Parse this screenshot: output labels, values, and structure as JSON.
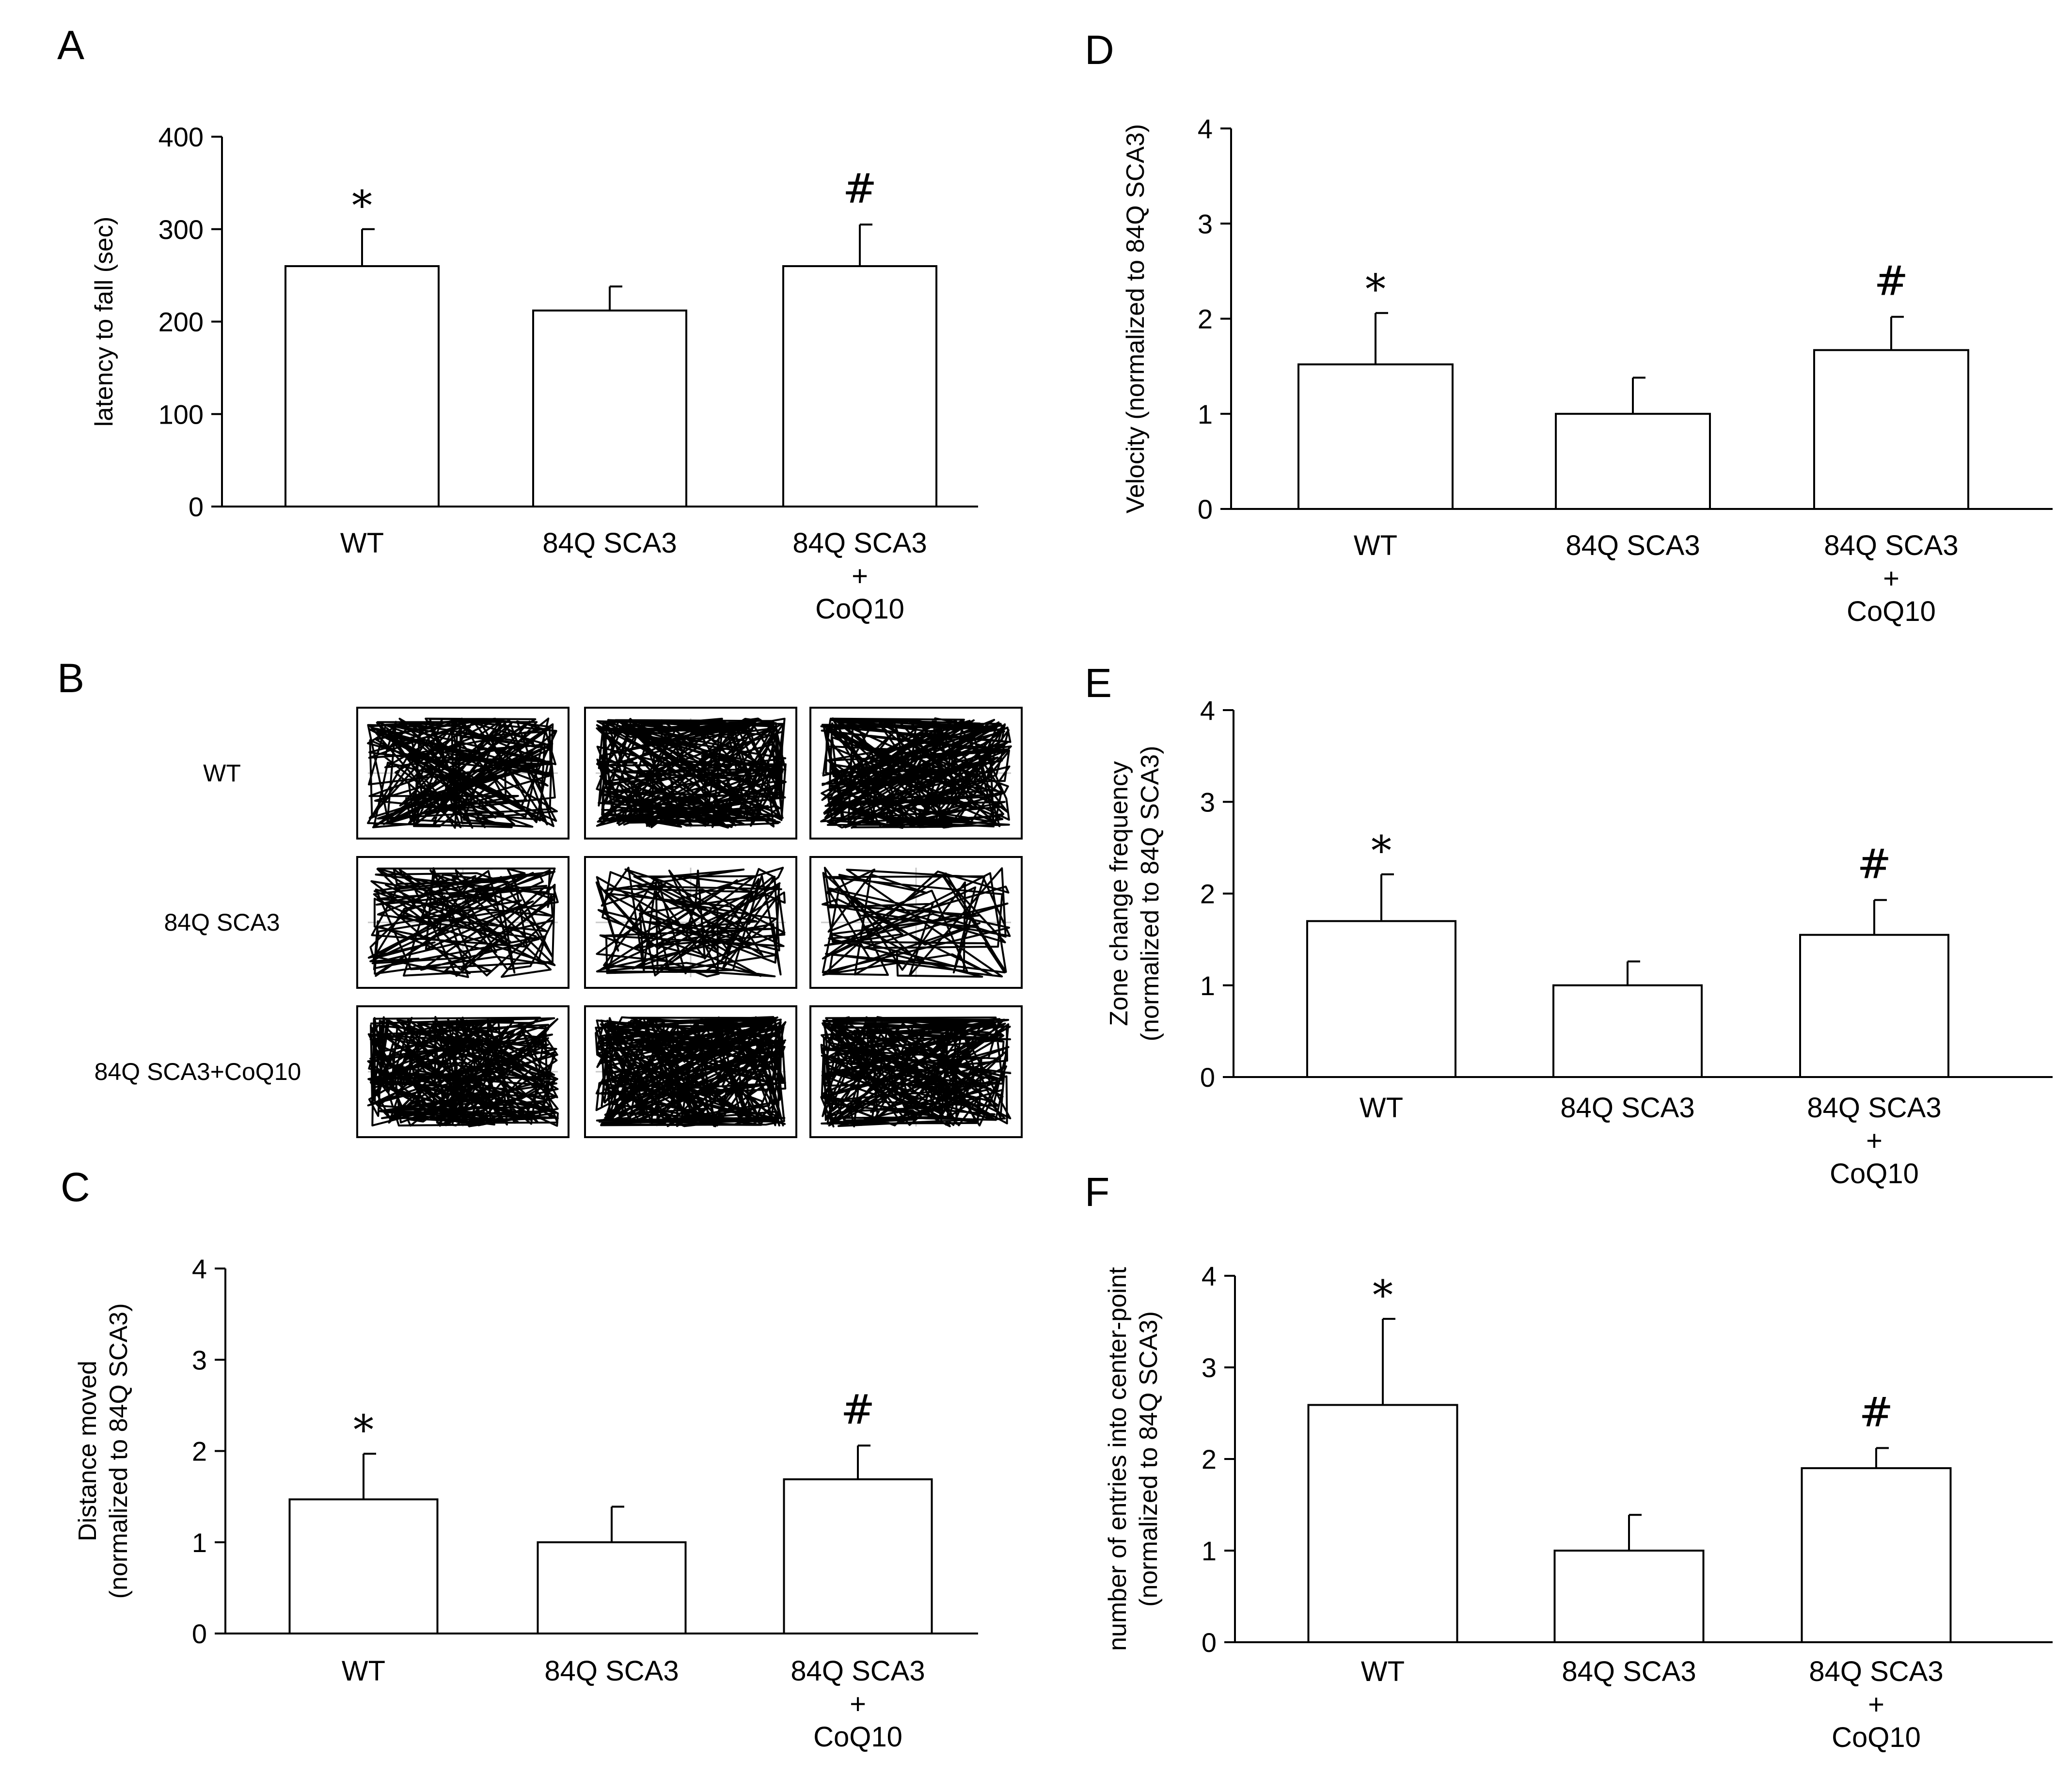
{
  "figure": {
    "panel_letters": {
      "A": "A",
      "B": "B",
      "C": "C",
      "D": "D",
      "E": "E",
      "F": "F"
    },
    "trace_rows": [
      "WT",
      "84Q SCA3",
      "84Q SCA3+CoQ10"
    ]
  },
  "chart_data": [
    {
      "panel": "A",
      "type": "bar",
      "title": "",
      "categories": [
        "WT",
        "84Q SCA3",
        "84Q SCA3|+|CoQ10"
      ],
      "values": [
        260,
        212,
        260
      ],
      "errors": [
        40,
        26,
        45
      ],
      "annotations": [
        "*",
        "",
        "#"
      ],
      "ylabel": [
        "latency to fall (sec)"
      ],
      "xlabel": "",
      "ylim": [
        0,
        400
      ],
      "yticks": [
        0,
        100,
        200,
        300,
        400
      ],
      "grid": false
    },
    {
      "panel": "C",
      "type": "bar",
      "title": "",
      "categories": [
        "WT",
        "84Q SCA3",
        "84Q SCA3|+|CoQ10"
      ],
      "values": [
        1.47,
        1.0,
        1.69
      ],
      "errors": [
        0.5,
        0.39,
        0.37
      ],
      "annotations": [
        "*",
        "",
        "#"
      ],
      "ylabel": [
        "Distance moved",
        "(normalized to 84Q SCA3)"
      ],
      "xlabel": "",
      "ylim": [
        0,
        4
      ],
      "yticks": [
        0,
        1,
        2,
        3,
        4
      ],
      "grid": false
    },
    {
      "panel": "D",
      "type": "bar",
      "title": "",
      "categories": [
        "WT",
        "84Q SCA3",
        "84Q SCA3|+|CoQ10"
      ],
      "values": [
        1.52,
        1.0,
        1.67
      ],
      "errors": [
        0.54,
        0.38,
        0.35
      ],
      "annotations": [
        "*",
        "",
        "#"
      ],
      "ylabel": [
        "Velocity (normalized to 84Q SCA3)"
      ],
      "xlabel": "",
      "ylim": [
        0,
        4
      ],
      "yticks": [
        0,
        1,
        2,
        3,
        4
      ],
      "grid": false
    },
    {
      "panel": "E",
      "type": "bar",
      "title": "",
      "categories": [
        "WT",
        "84Q SCA3",
        "84Q SCA3|+|CoQ10"
      ],
      "values": [
        1.7,
        1.0,
        1.55
      ],
      "errors": [
        0.51,
        0.26,
        0.38
      ],
      "annotations": [
        "*",
        "",
        "#"
      ],
      "ylabel": [
        "Zone change frequency",
        "(normalized to 84Q SCA3)"
      ],
      "xlabel": "",
      "ylim": [
        0,
        4
      ],
      "yticks": [
        0,
        1,
        2,
        3,
        4
      ],
      "grid": false
    },
    {
      "panel": "F",
      "type": "bar",
      "title": "",
      "categories": [
        "WT",
        "84Q SCA3",
        "84Q SCA3|+|CoQ10"
      ],
      "values": [
        2.59,
        1.0,
        1.9
      ],
      "errors": [
        0.94,
        0.39,
        0.22
      ],
      "annotations": [
        "*",
        "",
        "#"
      ],
      "ylabel": [
        "number of entries into center-point",
        "(normalized to 84Q SCA3)"
      ],
      "xlabel": "",
      "ylim": [
        0,
        4
      ],
      "yticks": [
        0,
        1,
        2,
        3,
        4
      ],
      "grid": false
    }
  ]
}
